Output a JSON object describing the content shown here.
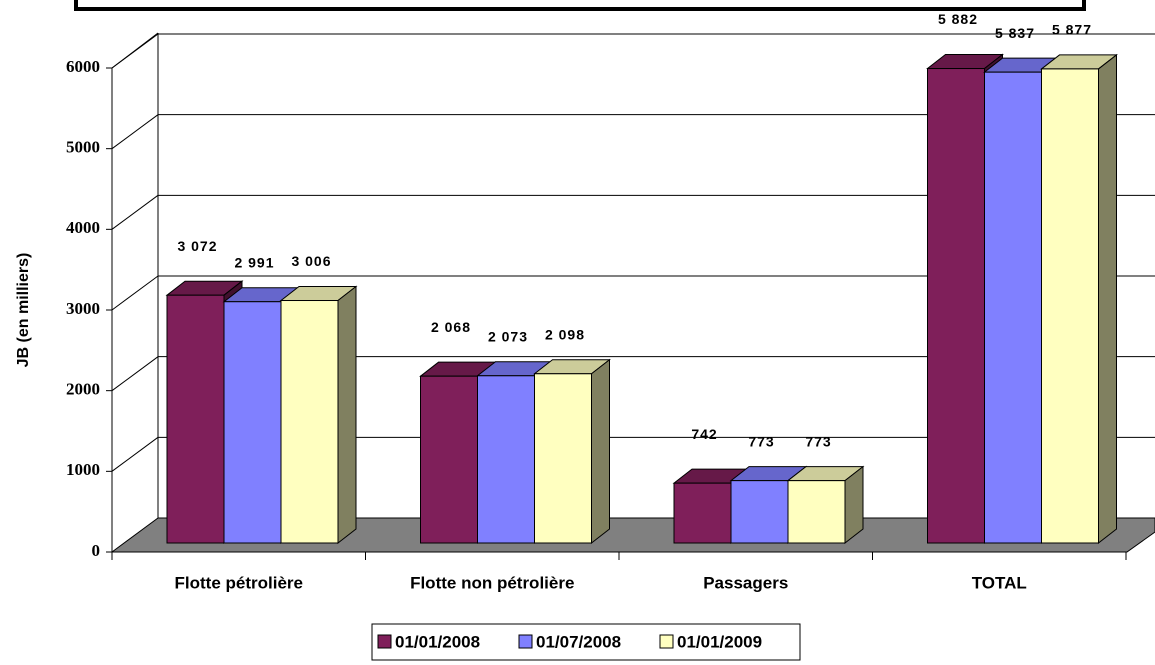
{
  "chart_data": {
    "type": "bar3d",
    "y_label": "JB (en milliers)",
    "categories": [
      "Flotte pétrolière",
      "Flotte non pétrolière",
      "Passagers",
      "TOTAL"
    ],
    "series": [
      {
        "name": "01/01/2008",
        "color": "#7f1f5a",
        "values": [
          3072,
          2068,
          742,
          5882
        ],
        "value_labels": [
          "3 072",
          "2 068",
          "742",
          "5 882"
        ]
      },
      {
        "name": "01/07/2008",
        "color": "#8080ff",
        "values": [
          2991,
          2073,
          773,
          5837
        ],
        "value_labels": [
          "2 991",
          "2 073",
          "773",
          "5 837"
        ]
      },
      {
        "name": "01/01/2009",
        "color": "#ffffc0",
        "values": [
          3006,
          2098,
          773,
          5877
        ],
        "value_labels": [
          "3 006",
          "2 098",
          "773",
          "5 877"
        ]
      }
    ],
    "ylim": [
      0,
      6000
    ],
    "yticks": [
      0,
      1000,
      2000,
      3000,
      4000,
      5000,
      6000
    ],
    "grid": true
  }
}
